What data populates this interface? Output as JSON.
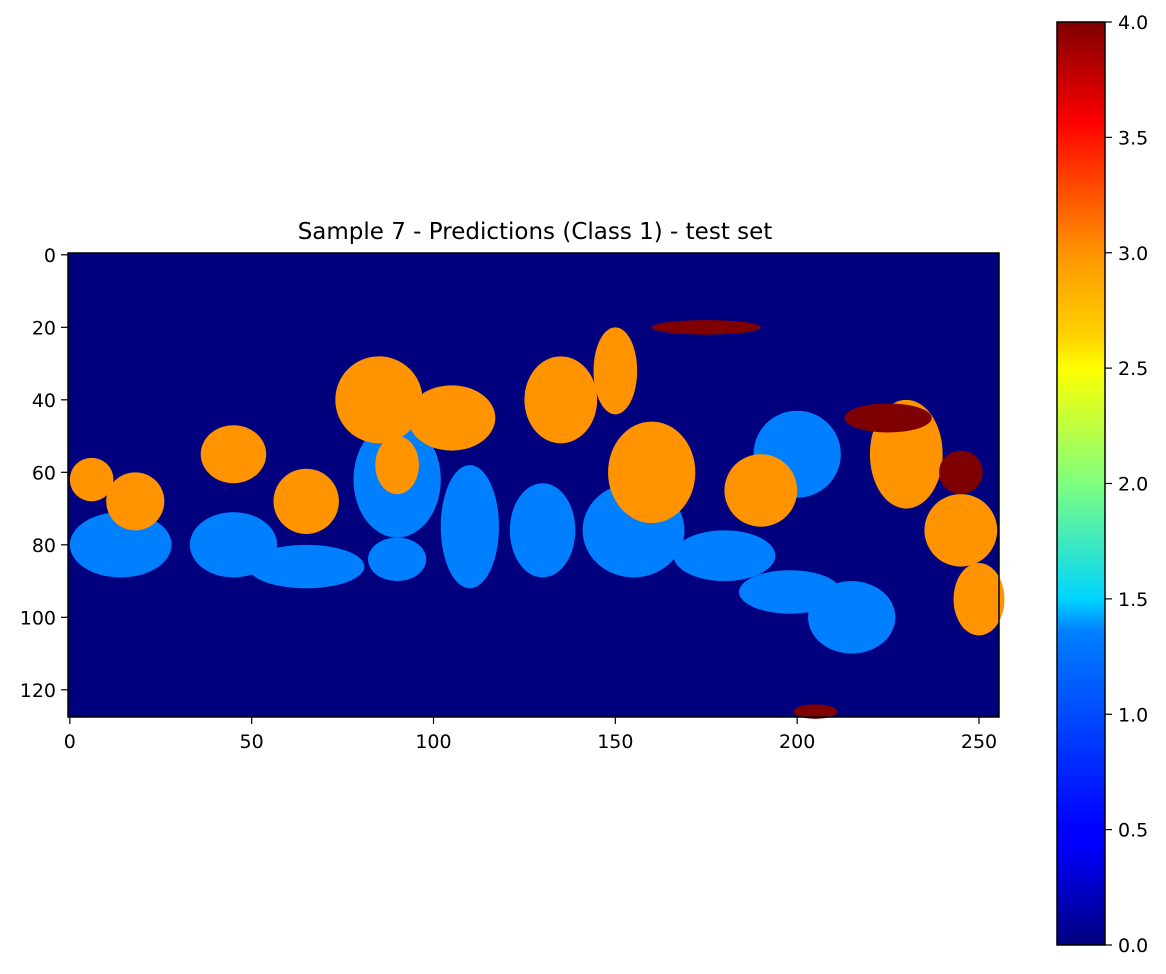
{
  "chart_data": {
    "type": "heatmap",
    "title": "Sample 7 - Predictions (Class 1) - test set",
    "xlabel": "",
    "ylabel": "",
    "image_shape": [
      128,
      256
    ],
    "xlim": [
      -0.5,
      255.5
    ],
    "ylim": [
      127.5,
      -0.5
    ],
    "x_ticks": [
      0,
      50,
      100,
      150,
      200,
      250
    ],
    "y_ticks": [
      0,
      20,
      40,
      60,
      80,
      100,
      120
    ],
    "x_tick_labels": [
      "0",
      "50",
      "100",
      "150",
      "200",
      "250"
    ],
    "y_tick_labels": [
      "0",
      "20",
      "40",
      "60",
      "80",
      "100",
      "120"
    ],
    "colormap": "jet",
    "colorbar": {
      "range": [
        0.0,
        4.0
      ],
      "ticks": [
        0.0,
        0.5,
        1.0,
        1.5,
        2.0,
        2.5,
        3.0,
        3.5,
        4.0
      ],
      "tick_labels": [
        "0.0",
        "0.5",
        "1.0",
        "1.5",
        "2.0",
        "2.5",
        "3.0",
        "3.5",
        "4.0"
      ]
    },
    "classes": [
      {
        "value": 0,
        "color": "#00007f"
      },
      {
        "value": 1,
        "color": "#0080ff"
      },
      {
        "value": 3,
        "color": "#ff9400"
      },
      {
        "value": 4,
        "color": "#7f0000"
      }
    ],
    "regions": {
      "background_value": 0,
      "class1_regions": [
        {
          "value": 1,
          "cx": 14,
          "cy": 80,
          "rx": 14,
          "ry": 9
        },
        {
          "value": 1,
          "cx": 45,
          "cy": 80,
          "rx": 12,
          "ry": 9
        },
        {
          "value": 1,
          "cx": 65,
          "cy": 86,
          "rx": 16,
          "ry": 6
        },
        {
          "value": 1,
          "cx": 90,
          "cy": 84,
          "rx": 8,
          "ry": 6
        },
        {
          "value": 1,
          "cx": 110,
          "cy": 75,
          "rx": 8,
          "ry": 17
        },
        {
          "value": 1,
          "cx": 130,
          "cy": 76,
          "rx": 9,
          "ry": 13
        },
        {
          "value": 1,
          "cx": 155,
          "cy": 76,
          "rx": 14,
          "ry": 13
        },
        {
          "value": 1,
          "cx": 180,
          "cy": 83,
          "rx": 14,
          "ry": 7
        },
        {
          "value": 1,
          "cx": 198,
          "cy": 93,
          "rx": 14,
          "ry": 6
        },
        {
          "value": 1,
          "cx": 215,
          "cy": 100,
          "rx": 12,
          "ry": 10
        },
        {
          "value": 1,
          "cx": 200,
          "cy": 55,
          "rx": 12,
          "ry": 12
        },
        {
          "value": 1,
          "cx": 90,
          "cy": 62,
          "rx": 12,
          "ry": 16
        }
      ],
      "class3_regions": [
        {
          "value": 3,
          "cx": 6,
          "cy": 62,
          "rx": 6,
          "ry": 6
        },
        {
          "value": 3,
          "cx": 18,
          "cy": 68,
          "rx": 8,
          "ry": 8
        },
        {
          "value": 3,
          "cx": 45,
          "cy": 55,
          "rx": 9,
          "ry": 8
        },
        {
          "value": 3,
          "cx": 65,
          "cy": 68,
          "rx": 9,
          "ry": 9
        },
        {
          "value": 3,
          "cx": 90,
          "cy": 58,
          "rx": 6,
          "ry": 8
        },
        {
          "value": 3,
          "cx": 85,
          "cy": 40,
          "rx": 12,
          "ry": 12
        },
        {
          "value": 3,
          "cx": 105,
          "cy": 45,
          "rx": 12,
          "ry": 9
        },
        {
          "value": 3,
          "cx": 135,
          "cy": 40,
          "rx": 10,
          "ry": 12
        },
        {
          "value": 3,
          "cx": 150,
          "cy": 32,
          "rx": 6,
          "ry": 12
        },
        {
          "value": 3,
          "cx": 160,
          "cy": 60,
          "rx": 12,
          "ry": 14
        },
        {
          "value": 3,
          "cx": 190,
          "cy": 65,
          "rx": 10,
          "ry": 10
        },
        {
          "value": 3,
          "cx": 230,
          "cy": 55,
          "rx": 10,
          "ry": 15
        },
        {
          "value": 3,
          "cx": 245,
          "cy": 76,
          "rx": 10,
          "ry": 10
        },
        {
          "value": 3,
          "cx": 250,
          "cy": 95,
          "rx": 7,
          "ry": 10
        }
      ],
      "class4_regions": [
        {
          "value": 4,
          "cx": 175,
          "cy": 20,
          "rx": 15,
          "ry": 2
        },
        {
          "value": 4,
          "cx": 225,
          "cy": 45,
          "rx": 12,
          "ry": 4
        },
        {
          "value": 4,
          "cx": 245,
          "cy": 60,
          "rx": 6,
          "ry": 6
        },
        {
          "value": 4,
          "cx": 205,
          "cy": 126,
          "rx": 6,
          "ry": 2
        }
      ]
    }
  }
}
